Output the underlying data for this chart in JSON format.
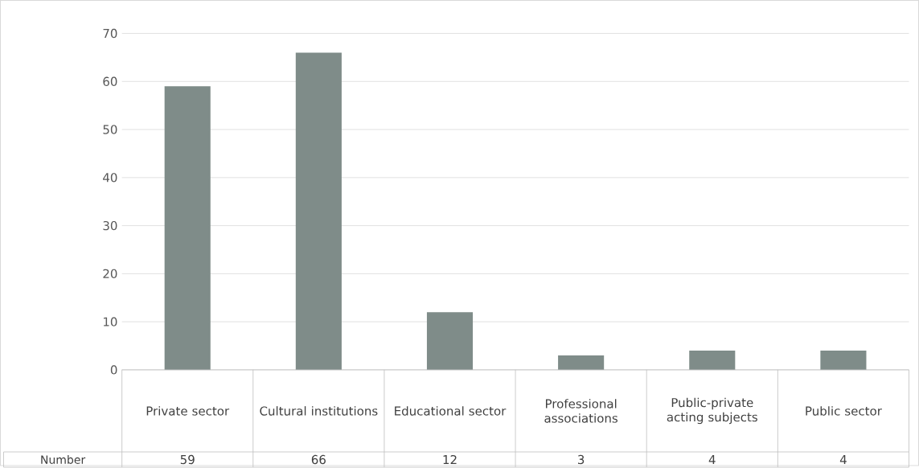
{
  "chart_data": {
    "type": "bar",
    "categories": [
      "Private sector",
      "Cultural institutions",
      "Educational sector",
      "Professional associations",
      "Public-private acting subjects",
      "Public sector"
    ],
    "series": [
      {
        "name": "Number",
        "color": "#7f8c89",
        "values": [
          59,
          66,
          12,
          3,
          4,
          4
        ]
      }
    ],
    "ylim": [
      0,
      70
    ],
    "yticks": [
      0,
      10,
      20,
      30,
      40,
      50,
      60,
      70
    ],
    "grid": "y",
    "data_labels": true
  }
}
